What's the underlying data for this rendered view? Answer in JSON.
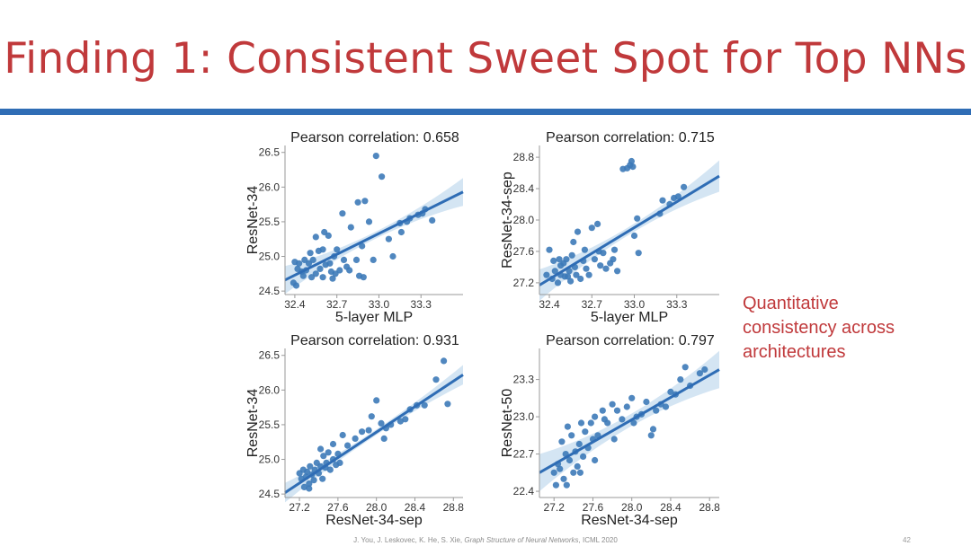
{
  "slide": {
    "title": "Finding 1: Consistent Sweet Spot for Top NNs",
    "note_lines": [
      "Quantitative",
      "consistency across",
      "architectures"
    ],
    "citation_authors": "J. You, J. Leskovec, K. He, S. Xie, ",
    "citation_title": "Graph Structure of Neural Networks",
    "citation_venue": ", ICML 2020",
    "page_number": "42"
  },
  "colors": {
    "title": "#c0393b",
    "rule": "#2f6db5",
    "point": "#3d7ab8",
    "line": "#2f6db5",
    "band": "#c5dcef"
  },
  "chart_data": [
    {
      "type": "scatter",
      "title": "Pearson correlation: 0.658",
      "xlabel": "5-layer MLP",
      "ylabel": "ResNet-34",
      "xlim": [
        32.33,
        33.6
      ],
      "ylim": [
        24.45,
        26.6
      ],
      "xticks": [
        32.4,
        32.7,
        33.0,
        33.3
      ],
      "xtick_labels": [
        "32.4",
        "32.7",
        "33.0",
        "33.3"
      ],
      "yticks": [
        24.5,
        25.0,
        25.5,
        26.0,
        26.5
      ],
      "ytick_labels": [
        "24.5",
        "25.0",
        "25.5",
        "26.0",
        "26.5"
      ],
      "fit": {
        "x": [
          32.33,
          33.6
        ],
        "y": [
          24.66,
          25.93
        ]
      },
      "band_half_width": [
        0.05,
        0.2
      ],
      "x": [
        32.39,
        32.4,
        32.41,
        32.42,
        32.43,
        32.45,
        32.46,
        32.47,
        32.48,
        32.5,
        32.51,
        32.52,
        32.53,
        32.55,
        32.57,
        32.58,
        32.6,
        32.61,
        32.62,
        32.64,
        32.65,
        32.66,
        32.67,
        32.69,
        32.7,
        32.72,
        32.74,
        32.75,
        32.77,
        32.79,
        32.8,
        32.84,
        32.86,
        32.88,
        32.89,
        32.9,
        32.93,
        32.96,
        32.98,
        33.02,
        32.85,
        33.07,
        33.1,
        33.15,
        33.16,
        33.2,
        33.22,
        33.28,
        33.31,
        33.33,
        33.38,
        32.55,
        32.6,
        32.68
      ],
      "y": [
        24.62,
        24.92,
        24.58,
        24.82,
        24.9,
        24.78,
        24.72,
        24.95,
        24.8,
        24.9,
        25.05,
        24.7,
        24.95,
        24.75,
        25.08,
        24.82,
        25.1,
        25.35,
        24.88,
        25.3,
        24.9,
        24.78,
        24.68,
        24.75,
        25.1,
        24.8,
        25.62,
        24.95,
        24.85,
        24.8,
        25.42,
        24.95,
        24.72,
        25.15,
        24.7,
        25.8,
        25.5,
        24.95,
        26.45,
        26.15,
        25.78,
        25.25,
        25.0,
        25.48,
        25.35,
        25.5,
        25.55,
        25.6,
        25.62,
        25.68,
        25.52,
        25.28,
        24.7,
        25.0
      ]
    },
    {
      "type": "scatter",
      "title": "Pearson correlation: 0.715",
      "xlabel": "5-layer MLP",
      "ylabel": "ResNet-34-sep",
      "xlim": [
        32.33,
        33.6
      ],
      "ylim": [
        27.05,
        28.95
      ],
      "xticks": [
        32.4,
        32.7,
        33.0,
        33.3
      ],
      "xtick_labels": [
        "32.4",
        "32.7",
        "33.0",
        "33.3"
      ],
      "yticks": [
        27.2,
        27.6,
        28.0,
        28.4,
        28.8
      ],
      "ytick_labels": [
        "27.2",
        "27.6",
        "28.0",
        "28.4",
        "28.8"
      ],
      "fit": {
        "x": [
          32.33,
          33.6
        ],
        "y": [
          27.17,
          28.56
        ]
      },
      "band_half_width": [
        0.05,
        0.2
      ],
      "x": [
        32.38,
        32.4,
        32.42,
        32.43,
        32.44,
        32.46,
        32.47,
        32.48,
        32.5,
        32.51,
        32.52,
        32.54,
        32.55,
        32.56,
        32.58,
        32.59,
        32.6,
        32.62,
        32.64,
        32.65,
        32.66,
        32.68,
        32.7,
        32.72,
        32.74,
        32.76,
        32.78,
        32.8,
        32.83,
        32.86,
        32.88,
        32.92,
        32.95,
        32.97,
        32.98,
        32.99,
        33.0,
        33.02,
        33.03,
        33.18,
        33.2,
        33.25,
        33.28,
        33.31,
        33.35,
        32.48,
        32.57,
        32.75,
        32.85,
        32.53
      ],
      "y": [
        27.3,
        27.62,
        27.25,
        27.48,
        27.35,
        27.2,
        27.5,
        27.3,
        27.45,
        27.28,
        27.5,
        27.35,
        27.22,
        27.55,
        27.4,
        27.3,
        27.85,
        27.25,
        27.48,
        27.62,
        27.38,
        27.3,
        27.9,
        27.5,
        27.95,
        27.42,
        27.58,
        27.38,
        27.45,
        27.62,
        27.35,
        28.65,
        28.66,
        28.7,
        28.75,
        28.68,
        27.8,
        28.02,
        27.58,
        28.08,
        28.25,
        28.2,
        28.28,
        28.3,
        28.42,
        27.42,
        27.72,
        27.6,
        27.5,
        27.28
      ]
    },
    {
      "type": "scatter",
      "title": "Pearson correlation: 0.931",
      "xlabel": "ResNet-34-sep",
      "ylabel": "ResNet-34",
      "xlim": [
        27.05,
        28.9
      ],
      "ylim": [
        24.45,
        26.6
      ],
      "xticks": [
        27.2,
        27.6,
        28.0,
        28.4,
        28.8
      ],
      "xtick_labels": [
        "27.2",
        "27.6",
        "28.0",
        "28.4",
        "28.8"
      ],
      "yticks": [
        24.5,
        25.0,
        25.5,
        26.0,
        26.5
      ],
      "ytick_labels": [
        "24.5",
        "25.0",
        "25.5",
        "26.0",
        "26.5"
      ],
      "fit": {
        "x": [
          27.05,
          28.9
        ],
        "y": [
          24.52,
          26.22
        ]
      },
      "band_half_width": [
        0.04,
        0.14
      ],
      "x": [
        27.2,
        27.22,
        27.24,
        27.25,
        27.27,
        27.28,
        27.3,
        27.31,
        27.33,
        27.35,
        27.36,
        27.38,
        27.4,
        27.42,
        27.44,
        27.45,
        27.47,
        27.48,
        27.5,
        27.52,
        27.55,
        27.58,
        27.6,
        27.62,
        27.65,
        27.7,
        27.78,
        27.85,
        27.92,
        27.95,
        28.0,
        28.05,
        28.08,
        28.1,
        28.15,
        28.25,
        28.3,
        28.35,
        28.42,
        28.5,
        28.62,
        28.7,
        28.74,
        27.3,
        27.42,
        27.55
      ],
      "y": [
        24.8,
        24.72,
        24.85,
        24.6,
        24.75,
        24.82,
        24.65,
        24.9,
        24.78,
        24.7,
        24.85,
        24.95,
        24.8,
        24.9,
        24.72,
        25.05,
        24.88,
        24.95,
        25.1,
        24.85,
        25.0,
        24.92,
        25.08,
        24.95,
        25.35,
        25.2,
        25.3,
        25.4,
        25.42,
        25.62,
        25.85,
        25.52,
        25.3,
        25.45,
        25.5,
        25.55,
        25.58,
        25.72,
        25.78,
        25.78,
        26.15,
        26.42,
        25.8,
        24.58,
        25.15,
        25.22
      ]
    },
    {
      "type": "scatter",
      "title": "Pearson correlation: 0.797",
      "xlabel": "ResNet-34-sep",
      "ylabel": "ResNet-50",
      "xlim": [
        27.05,
        28.9
      ],
      "ylim": [
        22.35,
        23.55
      ],
      "xticks": [
        27.2,
        27.6,
        28.0,
        28.4,
        28.8
      ],
      "xtick_labels": [
        "27.2",
        "27.6",
        "28.0",
        "28.4",
        "28.8"
      ],
      "yticks": [
        22.4,
        22.7,
        23.0,
        23.3
      ],
      "ytick_labels": [
        "22.4",
        "22.7",
        "23.0",
        "23.3"
      ],
      "fit": {
        "x": [
          27.05,
          28.9
        ],
        "y": [
          22.55,
          23.38
        ]
      },
      "band_half_width": [
        0.05,
        0.15
      ],
      "x": [
        27.2,
        27.22,
        27.24,
        27.26,
        27.28,
        27.3,
        27.32,
        27.34,
        27.36,
        27.38,
        27.4,
        27.42,
        27.44,
        27.46,
        27.48,
        27.5,
        27.52,
        27.55,
        27.58,
        27.6,
        27.62,
        27.65,
        27.7,
        27.72,
        27.75,
        27.8,
        27.85,
        27.9,
        27.95,
        28.0,
        28.05,
        28.1,
        28.15,
        28.2,
        28.25,
        28.3,
        28.35,
        28.4,
        28.45,
        28.5,
        28.6,
        28.7,
        28.75,
        27.33,
        27.47,
        27.62,
        27.82,
        28.02,
        28.22,
        28.55
      ],
      "y": [
        22.55,
        22.45,
        22.62,
        22.58,
        22.8,
        22.5,
        22.7,
        22.92,
        22.65,
        22.85,
        22.55,
        22.72,
        22.6,
        22.78,
        22.95,
        22.68,
        22.88,
        22.75,
        22.95,
        22.82,
        23.0,
        22.85,
        23.05,
        22.98,
        22.95,
        23.1,
        23.05,
        22.98,
        23.08,
        23.15,
        23.0,
        23.02,
        23.12,
        22.85,
        23.05,
        23.1,
        23.08,
        23.2,
        23.18,
        23.3,
        23.25,
        23.35,
        23.38,
        22.45,
        22.55,
        22.65,
        22.82,
        22.95,
        22.9,
        23.4
      ]
    }
  ]
}
